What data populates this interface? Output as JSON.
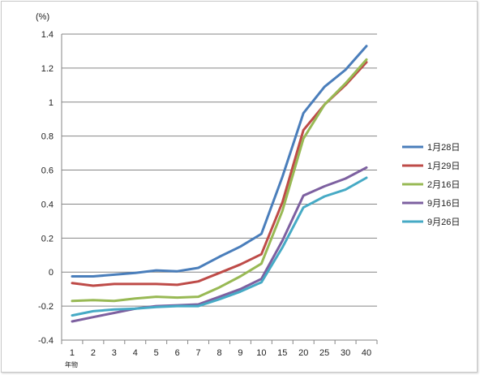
{
  "chart_data": {
    "type": "line",
    "unit_label": "(%)",
    "x_sub_label": "年物",
    "categories": [
      "1",
      "2",
      "3",
      "4",
      "5",
      "6",
      "7",
      "8",
      "9",
      "10",
      "15",
      "20",
      "25",
      "30",
      "40"
    ],
    "ylim": [
      -0.4,
      1.4
    ],
    "yticks": [
      -0.4,
      -0.2,
      0,
      0.2,
      0.4,
      0.6,
      0.8,
      1,
      1.2,
      1.4
    ],
    "grid": true,
    "legend_position": "right",
    "series": [
      {
        "name": "1月28日",
        "color": "#4a7ebb",
        "values": [
          -0.025,
          -0.025,
          -0.015,
          -0.005,
          0.01,
          0.005,
          0.025,
          0.09,
          0.15,
          0.225,
          0.56,
          0.935,
          1.09,
          1.19,
          1.33
        ]
      },
      {
        "name": "1月29日",
        "color": "#be4b48",
        "values": [
          -0.065,
          -0.08,
          -0.07,
          -0.07,
          -0.07,
          -0.075,
          -0.055,
          -0.005,
          0.045,
          0.105,
          0.41,
          0.835,
          0.985,
          1.1,
          1.235
        ]
      },
      {
        "name": "2月16日",
        "color": "#98b954",
        "values": [
          -0.17,
          -0.165,
          -0.17,
          -0.155,
          -0.145,
          -0.15,
          -0.145,
          -0.09,
          -0.025,
          0.05,
          0.36,
          0.785,
          0.985,
          1.11,
          1.25
        ]
      },
      {
        "name": "9月16日",
        "color": "#7d60a0",
        "values": [
          -0.29,
          -0.265,
          -0.24,
          -0.215,
          -0.2,
          -0.195,
          -0.19,
          -0.145,
          -0.1,
          -0.04,
          0.185,
          0.45,
          0.505,
          0.55,
          0.615
        ]
      },
      {
        "name": "9月26日",
        "color": "#46aac5",
        "values": [
          -0.255,
          -0.23,
          -0.22,
          -0.215,
          -0.205,
          -0.2,
          -0.2,
          -0.16,
          -0.115,
          -0.06,
          0.145,
          0.38,
          0.445,
          0.485,
          0.555
        ]
      }
    ]
  }
}
